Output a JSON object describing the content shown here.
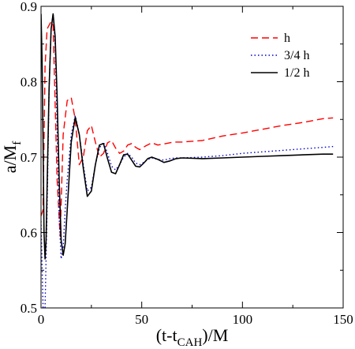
{
  "chart_data": {
    "type": "line",
    "title": "",
    "xlabel": "(t-t",
    "xlabel_sub": "CAH",
    "xlabel_tail": ")/M",
    "ylabel": "a/M",
    "ylabel_sub": "f",
    "xlim": [
      0,
      150
    ],
    "ylim": [
      0.5,
      0.9
    ],
    "xticks": [
      "0",
      "50",
      "100",
      "150"
    ],
    "yticks": [
      "0.5",
      "0.6",
      "0.7",
      "0.8",
      "0.9"
    ],
    "grid": false,
    "legend_position": "top-right",
    "series": [
      {
        "name": "h",
        "color": "#ff0000",
        "style": "dashed",
        "x": [
          0,
          1,
          2,
          3,
          5,
          6,
          8,
          9.5,
          11,
          13,
          15,
          17,
          19,
          21,
          23,
          25,
          27,
          29,
          31,
          33,
          35,
          37,
          39,
          41,
          43,
          45,
          47,
          49,
          52,
          55,
          58,
          62,
          66,
          70,
          80,
          90,
          100,
          110,
          120,
          130,
          140,
          145
        ],
        "y": [
          0.622,
          0.63,
          0.82,
          0.87,
          0.88,
          0.875,
          0.67,
          0.595,
          0.73,
          0.775,
          0.779,
          0.75,
          0.69,
          0.7,
          0.735,
          0.742,
          0.72,
          0.7,
          0.705,
          0.719,
          0.722,
          0.712,
          0.705,
          0.708,
          0.716,
          0.718,
          0.713,
          0.71,
          0.715,
          0.719,
          0.716,
          0.718,
          0.72,
          0.72,
          0.722,
          0.728,
          0.732,
          0.737,
          0.742,
          0.746,
          0.751,
          0.752
        ]
      },
      {
        "name": "3/4 h",
        "color": "#0000cc",
        "style": "dotted",
        "x": [
          0,
          1,
          2,
          3,
          4,
          5,
          6,
          7,
          8,
          9,
          10,
          11,
          12,
          13,
          15,
          17,
          19,
          21,
          23,
          25,
          27,
          29,
          31,
          33,
          35,
          37,
          39,
          41,
          43,
          45,
          47,
          49,
          51,
          53,
          55,
          58,
          61,
          64,
          67,
          70,
          80,
          90,
          100,
          110,
          120,
          130,
          140,
          145
        ],
        "y": [
          0.615,
          0.5,
          0.5,
          0.63,
          0.79,
          0.87,
          0.89,
          0.85,
          0.74,
          0.62,
          0.565,
          0.58,
          0.63,
          0.67,
          0.73,
          0.755,
          0.73,
          0.69,
          0.655,
          0.66,
          0.69,
          0.712,
          0.72,
          0.705,
          0.688,
          0.683,
          0.69,
          0.7,
          0.705,
          0.7,
          0.692,
          0.69,
          0.693,
          0.697,
          0.699,
          0.697,
          0.696,
          0.698,
          0.699,
          0.699,
          0.7,
          0.702,
          0.705,
          0.707,
          0.709,
          0.711,
          0.713,
          0.714
        ]
      },
      {
        "name": "1/2 h",
        "color": "#000000",
        "style": "solid",
        "x": [
          0,
          0.5,
          1,
          1.5,
          2,
          2.5,
          3,
          4,
          5,
          6,
          7,
          8,
          9,
          10,
          11,
          12,
          13,
          15,
          17,
          19,
          21,
          23,
          25,
          27,
          29,
          31,
          33,
          35,
          37,
          39,
          41,
          43,
          45,
          47,
          49,
          51,
          53,
          55,
          58,
          61,
          64,
          67,
          70,
          80,
          90,
          100,
          110,
          120,
          130,
          140,
          145
        ],
        "y": [
          0.89,
          0.83,
          0.72,
          0.6,
          0.565,
          0.59,
          0.66,
          0.79,
          0.87,
          0.89,
          0.86,
          0.78,
          0.67,
          0.59,
          0.57,
          0.585,
          0.63,
          0.72,
          0.753,
          0.73,
          0.685,
          0.648,
          0.655,
          0.69,
          0.716,
          0.718,
          0.698,
          0.68,
          0.678,
          0.69,
          0.703,
          0.704,
          0.696,
          0.688,
          0.687,
          0.692,
          0.698,
          0.7,
          0.697,
          0.693,
          0.695,
          0.698,
          0.699,
          0.698,
          0.699,
          0.7,
          0.701,
          0.702,
          0.703,
          0.704,
          0.704
        ]
      }
    ]
  }
}
